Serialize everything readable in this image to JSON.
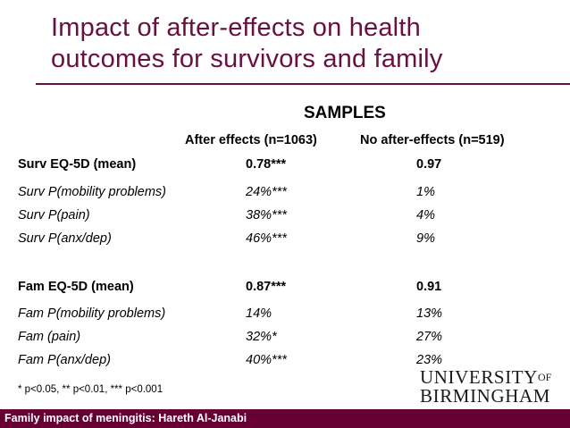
{
  "title": {
    "line1": "Impact of after-effects on health",
    "line2": "outcomes for survivors and family"
  },
  "table": {
    "group_header": "SAMPLES",
    "col1_header": "After effects (n=1063)",
    "col2_header": "No after-effects (n=519)",
    "rows": [
      {
        "label": "Surv EQ-5D (mean)",
        "v1": "0.78***",
        "v2": "0.97"
      },
      {
        "label": "Surv P(mobility problems)",
        "v1": "24%***",
        "v2": "1%"
      },
      {
        "label": "Surv P(pain)",
        "v1": "38%***",
        "v2": "4%"
      },
      {
        "label": "Surv P(anx/dep)",
        "v1": "46%***",
        "v2": "9%"
      },
      {
        "label": "Fam EQ-5D (mean)",
        "v1": "0.87***",
        "v2": "0.91"
      },
      {
        "label": "Fam P(mobility problems)",
        "v1": "14%",
        "v2": "13%"
      },
      {
        "label": "Fam (pain)",
        "v1": "32%*",
        "v2": "27%"
      },
      {
        "label": "Fam P(anx/dep)",
        "v1": "40%***",
        "v2": "23%"
      }
    ]
  },
  "footnote": "* p<0.05, ** p<0.01, *** p<0.001",
  "logo": {
    "line1": "UNIVERSITY",
    "of": "OF",
    "line2": "BIRMINGHAM"
  },
  "footer": "Family impact of meningitis: Hareth Al-Janabi",
  "colors": {
    "title": "#6a1040",
    "footer_bg": "#660033"
  }
}
